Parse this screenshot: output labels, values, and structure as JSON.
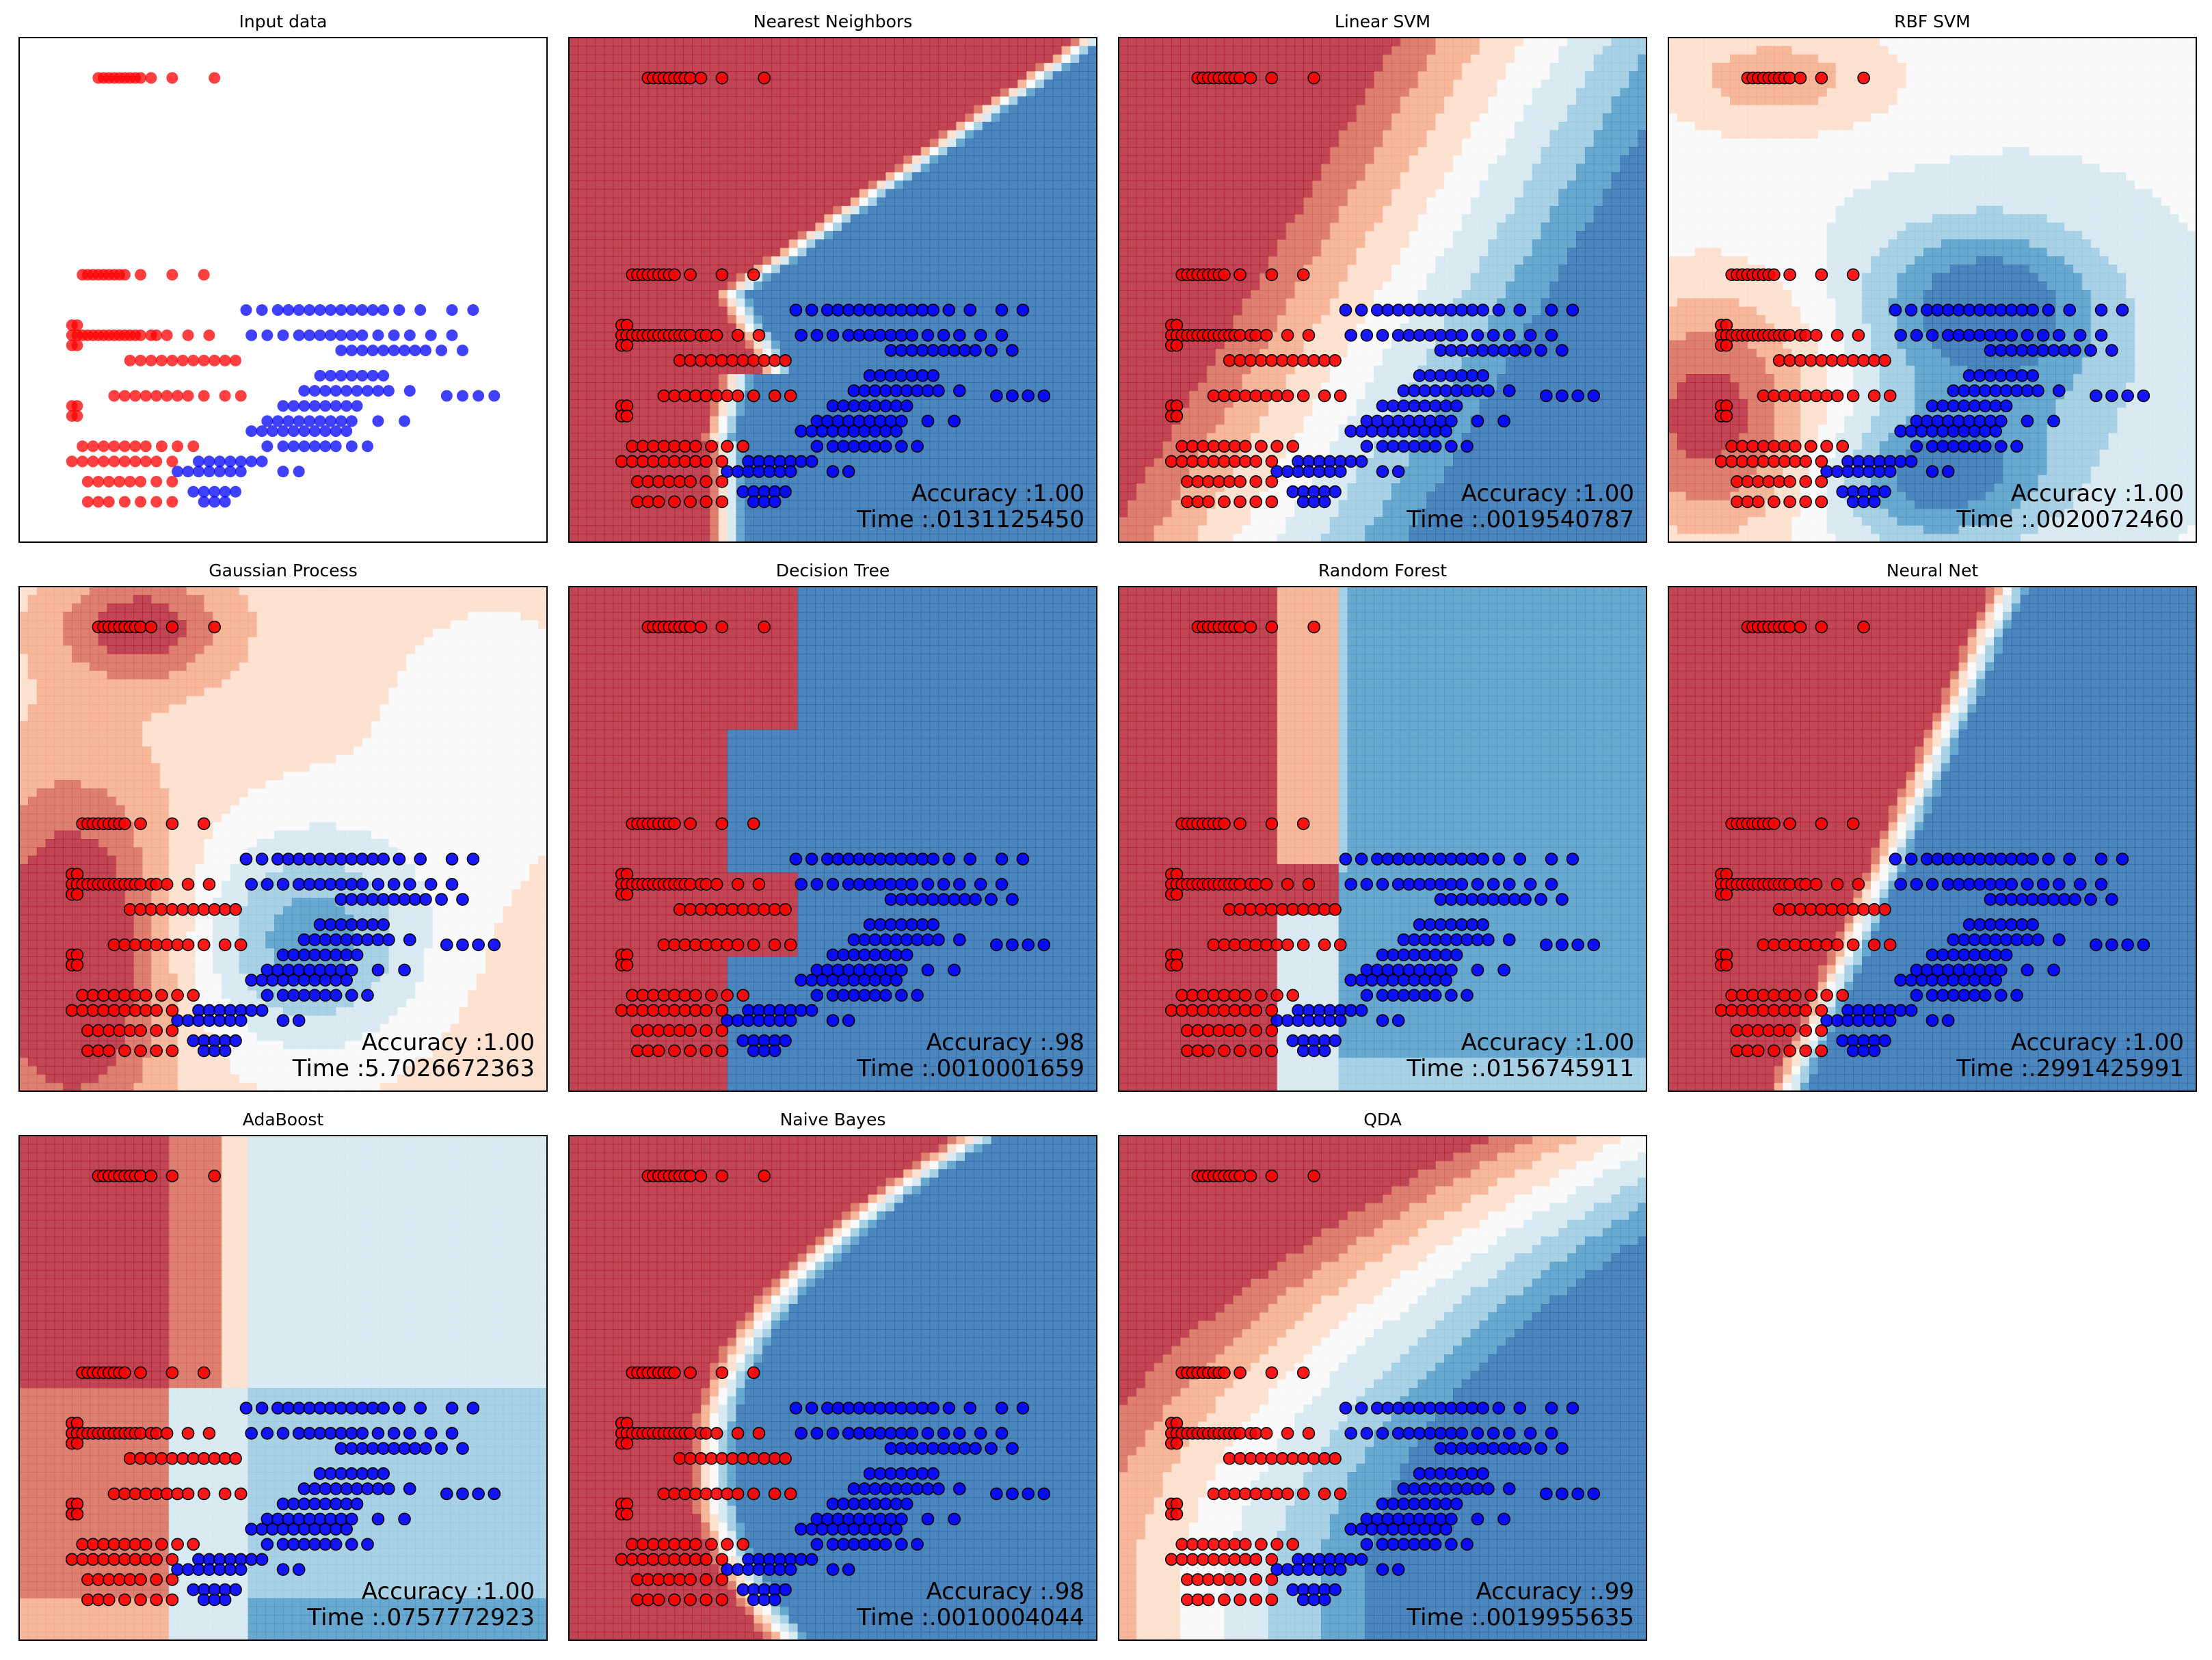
{
  "figure": {
    "background": "#ffffff",
    "colors": {
      "class_red": "#ff0000",
      "class_blue": "#0000ff",
      "marker_edge": "#000000",
      "cmap_RdBu": [
        "#67001f",
        "#b2182b",
        "#d6604d",
        "#f4a582",
        "#fddbc7",
        "#f7f7f7",
        "#d1e5f0",
        "#92c5de",
        "#4393c3",
        "#2166ac",
        "#053061"
      ]
    }
  },
  "chart_data": [
    {
      "type": "scatter",
      "title": "Input data",
      "xlabel": "",
      "ylabel": "",
      "xlim": [
        0,
        10
      ],
      "ylim": [
        0,
        10
      ],
      "grid": false,
      "ticks": false,
      "series": [
        {
          "color": "#ff0000",
          "points": [
            [
              1.5,
              9.2
            ],
            [
              1.6,
              9.2
            ],
            [
              1.7,
              9.2
            ],
            [
              1.8,
              9.2
            ],
            [
              1.9,
              9.2
            ],
            [
              2.0,
              9.2
            ],
            [
              2.1,
              9.2
            ],
            [
              2.2,
              9.2
            ],
            [
              2.3,
              9.2
            ],
            [
              2.5,
              9.2
            ],
            [
              2.9,
              9.2
            ],
            [
              3.7,
              9.2
            ],
            [
              1.2,
              5.3
            ],
            [
              1.3,
              5.3
            ],
            [
              1.4,
              5.3
            ],
            [
              1.5,
              5.3
            ],
            [
              1.6,
              5.3
            ],
            [
              1.7,
              5.3
            ],
            [
              1.8,
              5.3
            ],
            [
              1.9,
              5.3
            ],
            [
              2.0,
              5.3
            ],
            [
              2.3,
              5.3
            ],
            [
              2.9,
              5.3
            ],
            [
              3.5,
              5.3
            ],
            [
              1.0,
              4.3
            ],
            [
              1.1,
              4.3
            ],
            [
              1.0,
              4.1
            ],
            [
              1.1,
              4.1
            ],
            [
              1.2,
              4.1
            ],
            [
              1.3,
              4.1
            ],
            [
              1.4,
              4.1
            ],
            [
              1.5,
              4.1
            ],
            [
              1.6,
              4.1
            ],
            [
              1.7,
              4.1
            ],
            [
              1.8,
              4.1
            ],
            [
              1.9,
              4.1
            ],
            [
              2.0,
              4.1
            ],
            [
              2.1,
              4.1
            ],
            [
              2.2,
              4.1
            ],
            [
              2.3,
              4.1
            ],
            [
              2.5,
              4.1
            ],
            [
              2.6,
              4.1
            ],
            [
              2.8,
              4.1
            ],
            [
              3.2,
              4.1
            ],
            [
              3.6,
              4.1
            ],
            [
              1.0,
              3.9
            ],
            [
              1.1,
              3.9
            ],
            [
              2.1,
              3.6
            ],
            [
              2.3,
              3.6
            ],
            [
              2.5,
              3.6
            ],
            [
              2.7,
              3.6
            ],
            [
              2.9,
              3.6
            ],
            [
              3.1,
              3.6
            ],
            [
              3.3,
              3.6
            ],
            [
              3.5,
              3.6
            ],
            [
              3.7,
              3.6
            ],
            [
              3.9,
              3.6
            ],
            [
              4.1,
              3.6
            ],
            [
              1.8,
              2.9
            ],
            [
              2.0,
              2.9
            ],
            [
              2.2,
              2.9
            ],
            [
              2.4,
              2.9
            ],
            [
              2.6,
              2.9
            ],
            [
              2.8,
              2.9
            ],
            [
              3.0,
              2.9
            ],
            [
              3.2,
              2.9
            ],
            [
              3.5,
              2.9
            ],
            [
              3.9,
              2.9
            ],
            [
              4.2,
              2.9
            ],
            [
              1.0,
              2.7
            ],
            [
              1.1,
              2.7
            ],
            [
              1.0,
              2.5
            ],
            [
              1.1,
              2.5
            ],
            [
              1.2,
              1.9
            ],
            [
              1.4,
              1.9
            ],
            [
              1.6,
              1.9
            ],
            [
              1.8,
              1.9
            ],
            [
              2.0,
              1.9
            ],
            [
              2.2,
              1.9
            ],
            [
              2.4,
              1.9
            ],
            [
              2.7,
              1.9
            ],
            [
              3.0,
              1.9
            ],
            [
              3.3,
              1.9
            ],
            [
              1.0,
              1.6
            ],
            [
              1.2,
              1.6
            ],
            [
              1.4,
              1.6
            ],
            [
              1.6,
              1.6
            ],
            [
              1.8,
              1.6
            ],
            [
              2.0,
              1.6
            ],
            [
              2.2,
              1.6
            ],
            [
              2.4,
              1.6
            ],
            [
              2.6,
              1.6
            ],
            [
              2.9,
              1.6
            ],
            [
              1.3,
              1.2
            ],
            [
              1.5,
              1.2
            ],
            [
              1.7,
              1.2
            ],
            [
              1.9,
              1.2
            ],
            [
              2.1,
              1.2
            ],
            [
              2.3,
              1.2
            ],
            [
              2.6,
              1.2
            ],
            [
              2.9,
              1.2
            ],
            [
              1.3,
              0.8
            ],
            [
              1.5,
              0.8
            ],
            [
              1.7,
              0.8
            ],
            [
              2.0,
              0.8
            ],
            [
              2.3,
              0.8
            ],
            [
              2.6,
              0.8
            ],
            [
              2.9,
              0.8
            ]
          ]
        },
        {
          "color": "#0000ff",
          "points": [
            [
              4.3,
              4.6
            ],
            [
              4.6,
              4.6
            ],
            [
              4.9,
              4.6
            ],
            [
              5.1,
              4.6
            ],
            [
              5.3,
              4.6
            ],
            [
              5.5,
              4.6
            ],
            [
              5.7,
              4.6
            ],
            [
              5.9,
              4.6
            ],
            [
              6.1,
              4.6
            ],
            [
              6.3,
              4.6
            ],
            [
              6.5,
              4.6
            ],
            [
              6.7,
              4.6
            ],
            [
              6.9,
              4.6
            ],
            [
              7.2,
              4.6
            ],
            [
              7.6,
              4.6
            ],
            [
              8.2,
              4.6
            ],
            [
              8.6,
              4.6
            ],
            [
              4.4,
              4.1
            ],
            [
              4.7,
              4.1
            ],
            [
              5.0,
              4.1
            ],
            [
              5.3,
              4.1
            ],
            [
              5.5,
              4.1
            ],
            [
              5.7,
              4.1
            ],
            [
              5.9,
              4.1
            ],
            [
              6.1,
              4.1
            ],
            [
              6.3,
              4.1
            ],
            [
              6.5,
              4.1
            ],
            [
              6.8,
              4.1
            ],
            [
              7.1,
              4.1
            ],
            [
              7.4,
              4.1
            ],
            [
              7.8,
              4.1
            ],
            [
              8.2,
              4.1
            ],
            [
              6.1,
              3.8
            ],
            [
              6.3,
              3.8
            ],
            [
              6.5,
              3.8
            ],
            [
              6.7,
              3.8
            ],
            [
              6.9,
              3.8
            ],
            [
              7.1,
              3.8
            ],
            [
              7.3,
              3.8
            ],
            [
              7.5,
              3.8
            ],
            [
              7.7,
              3.8
            ],
            [
              8.0,
              3.8
            ],
            [
              8.4,
              3.8
            ],
            [
              5.7,
              3.3
            ],
            [
              5.9,
              3.3
            ],
            [
              6.1,
              3.3
            ],
            [
              6.3,
              3.3
            ],
            [
              6.5,
              3.3
            ],
            [
              6.7,
              3.3
            ],
            [
              6.9,
              3.3
            ],
            [
              5.4,
              3.0
            ],
            [
              5.6,
              3.0
            ],
            [
              5.8,
              3.0
            ],
            [
              6.0,
              3.0
            ],
            [
              6.2,
              3.0
            ],
            [
              6.4,
              3.0
            ],
            [
              6.6,
              3.0
            ],
            [
              6.8,
              3.0
            ],
            [
              7.0,
              3.0
            ],
            [
              7.4,
              3.0
            ],
            [
              8.1,
              2.9
            ],
            [
              8.4,
              2.9
            ],
            [
              8.7,
              2.9
            ],
            [
              9.0,
              2.9
            ],
            [
              5.0,
              2.7
            ],
            [
              5.2,
              2.7
            ],
            [
              5.4,
              2.7
            ],
            [
              5.6,
              2.7
            ],
            [
              5.8,
              2.7
            ],
            [
              6.0,
              2.7
            ],
            [
              6.2,
              2.7
            ],
            [
              6.4,
              2.7
            ],
            [
              4.7,
              2.4
            ],
            [
              4.9,
              2.4
            ],
            [
              5.1,
              2.4
            ],
            [
              5.3,
              2.4
            ],
            [
              5.5,
              2.4
            ],
            [
              5.7,
              2.4
            ],
            [
              5.9,
              2.4
            ],
            [
              6.1,
              2.4
            ],
            [
              6.3,
              2.4
            ],
            [
              6.8,
              2.4
            ],
            [
              7.3,
              2.4
            ],
            [
              4.4,
              2.2
            ],
            [
              4.6,
              2.2
            ],
            [
              4.8,
              2.2
            ],
            [
              5.0,
              2.2
            ],
            [
              5.2,
              2.2
            ],
            [
              5.4,
              2.2
            ],
            [
              5.6,
              2.2
            ],
            [
              5.8,
              2.2
            ],
            [
              6.0,
              2.2
            ],
            [
              6.2,
              2.2
            ],
            [
              4.7,
              1.9
            ],
            [
              5.0,
              1.9
            ],
            [
              5.2,
              1.9
            ],
            [
              5.4,
              1.9
            ],
            [
              5.6,
              1.9
            ],
            [
              5.8,
              1.9
            ],
            [
              6.0,
              1.9
            ],
            [
              6.3,
              1.9
            ],
            [
              6.6,
              1.9
            ],
            [
              3.4,
              1.6
            ],
            [
              3.6,
              1.6
            ],
            [
              3.8,
              1.6
            ],
            [
              4.0,
              1.6
            ],
            [
              4.2,
              1.6
            ],
            [
              4.4,
              1.6
            ],
            [
              4.6,
              1.6
            ],
            [
              3.0,
              1.4
            ],
            [
              3.2,
              1.4
            ],
            [
              3.4,
              1.4
            ],
            [
              3.6,
              1.4
            ],
            [
              3.8,
              1.4
            ],
            [
              4.0,
              1.4
            ],
            [
              4.2,
              1.4
            ],
            [
              5.0,
              1.4
            ],
            [
              5.3,
              1.4
            ],
            [
              3.3,
              1.0
            ],
            [
              3.5,
              1.0
            ],
            [
              3.7,
              1.0
            ],
            [
              3.9,
              1.0
            ],
            [
              4.1,
              1.0
            ],
            [
              3.5,
              0.8
            ],
            [
              3.7,
              0.8
            ],
            [
              3.9,
              0.8
            ]
          ]
        }
      ]
    },
    {
      "type": "heatmap",
      "title": "Nearest Neighbors",
      "decision_surface": "knn",
      "accuracy_label": "Accuracy :1.00",
      "time_label": "Time :.0131125450",
      "xlim": [
        0,
        10
      ],
      "ylim": [
        0,
        10
      ]
    },
    {
      "type": "heatmap",
      "title": "Linear SVM",
      "decision_surface": "linear",
      "accuracy_label": "Accuracy :1.00",
      "time_label": "Time :.0019540787",
      "xlim": [
        0,
        10
      ],
      "ylim": [
        0,
        10
      ]
    },
    {
      "type": "heatmap",
      "title": "RBF SVM",
      "decision_surface": "rbf",
      "accuracy_label": "Accuracy :1.00",
      "time_label": "Time :.0020072460",
      "xlim": [
        0,
        10
      ],
      "ylim": [
        0,
        10
      ]
    },
    {
      "type": "heatmap",
      "title": "Gaussian Process",
      "decision_surface": "gp",
      "accuracy_label": "Accuracy :1.00",
      "time_label": "Time :5.7026672363",
      "xlim": [
        0,
        10
      ],
      "ylim": [
        0,
        10
      ]
    },
    {
      "type": "heatmap",
      "title": "Decision Tree",
      "decision_surface": "tree",
      "accuracy_label": "Accuracy :.98",
      "time_label": "Time :.0010001659",
      "xlim": [
        0,
        10
      ],
      "ylim": [
        0,
        10
      ]
    },
    {
      "type": "heatmap",
      "title": "Random Forest",
      "decision_surface": "forest",
      "accuracy_label": "Accuracy :1.00",
      "time_label": "Time :.0156745911",
      "xlim": [
        0,
        10
      ],
      "ylim": [
        0,
        10
      ]
    },
    {
      "type": "heatmap",
      "title": "Neural Net",
      "decision_surface": "mlp",
      "accuracy_label": "Accuracy :1.00",
      "time_label": "Time :.2991425991",
      "xlim": [
        0,
        10
      ],
      "ylim": [
        0,
        10
      ]
    },
    {
      "type": "heatmap",
      "title": "AdaBoost",
      "decision_surface": "adaboost",
      "accuracy_label": "Accuracy :1.00",
      "time_label": "Time :.0757772923",
      "xlim": [
        0,
        10
      ],
      "ylim": [
        0,
        10
      ]
    },
    {
      "type": "heatmap",
      "title": "Naive Bayes",
      "decision_surface": "naive_bayes",
      "accuracy_label": "Accuracy :.98",
      "time_label": "Time :.0010004044",
      "xlim": [
        0,
        10
      ],
      "ylim": [
        0,
        10
      ]
    },
    {
      "type": "heatmap",
      "title": "QDA",
      "decision_surface": "qda",
      "accuracy_label": "Accuracy :.99",
      "time_label": "Time :.0019955635",
      "xlim": [
        0,
        10
      ],
      "ylim": [
        0,
        10
      ]
    }
  ]
}
